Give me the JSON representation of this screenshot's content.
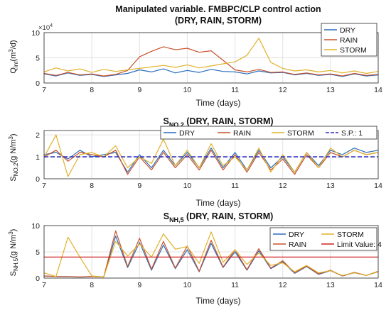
{
  "figure_title": "Manipulated variable. FMBPC/CLP control action",
  "chart_data": [
    {
      "type": "line",
      "title": "(DRY, RAIN, STORM)",
      "xlabel": "Time (days)",
      "ylabel": "Q_int(m^3/d)",
      "ylabel_main": "Q",
      "ylabel_sub": "int",
      "ylabel_rest": "(m",
      "ylabel_sup": "3",
      "ylabel_end": "/d)",
      "y_exponent_label": "×10",
      "y_exponent_power": "4",
      "xlim": [
        7,
        14
      ],
      "ylim": [
        0,
        10
      ],
      "x_ticks": [
        "7",
        "8",
        "9",
        "10",
        "11",
        "12",
        "13",
        "14"
      ],
      "y_ticks": [
        "0",
        "5",
        "10"
      ],
      "grid": true,
      "legend": "top-right",
      "series": [
        {
          "name": "DRY",
          "color": "#2a6ebb",
          "x": [
            7.0,
            7.25,
            7.5,
            7.75,
            8.0,
            8.25,
            8.5,
            8.75,
            9.0,
            9.25,
            9.5,
            9.75,
            10.0,
            10.25,
            10.5,
            10.75,
            11.0,
            11.25,
            11.5,
            11.75,
            12.0,
            12.25,
            12.5,
            12.75,
            13.0,
            13.25,
            13.5,
            13.75,
            14.0
          ],
          "y": [
            1.8,
            1.4,
            2.0,
            1.5,
            1.7,
            1.3,
            1.6,
            1.9,
            2.6,
            2.2,
            2.8,
            2.0,
            2.5,
            2.1,
            2.7,
            2.3,
            2.2,
            1.8,
            2.4,
            2.0,
            2.1,
            1.6,
            1.9,
            1.5,
            1.7,
            1.3,
            1.8,
            1.4,
            1.6
          ]
        },
        {
          "name": "RAIN",
          "color": "#c8502a",
          "x": [
            7.0,
            7.25,
            7.5,
            7.75,
            8.0,
            8.25,
            8.5,
            8.75,
            9.0,
            9.25,
            9.5,
            9.75,
            10.0,
            10.25,
            10.5,
            10.75,
            11.0,
            11.25,
            11.5,
            11.75,
            12.0,
            12.25,
            12.5,
            12.75,
            13.0,
            13.25,
            13.5,
            13.75,
            14.0
          ],
          "y": [
            1.9,
            1.5,
            2.1,
            1.6,
            1.8,
            1.4,
            1.7,
            2.5,
            5.2,
            6.3,
            7.2,
            6.6,
            6.9,
            6.1,
            6.4,
            4.5,
            2.6,
            2.2,
            2.7,
            2.1,
            2.2,
            1.7,
            2.0,
            1.6,
            1.8,
            1.4,
            1.9,
            1.5,
            1.7
          ]
        },
        {
          "name": "STORM",
          "color": "#e0b02a",
          "x": [
            7.0,
            7.25,
            7.5,
            7.75,
            8.0,
            8.25,
            8.5,
            8.75,
            9.0,
            9.25,
            9.5,
            9.75,
            10.0,
            10.25,
            10.5,
            10.75,
            11.0,
            11.25,
            11.5,
            11.75,
            12.0,
            12.25,
            12.5,
            12.75,
            13.0,
            13.25,
            13.5,
            13.75,
            14.0
          ],
          "y": [
            2.2,
            3.0,
            2.4,
            2.8,
            2.1,
            2.7,
            2.3,
            2.6,
            2.9,
            3.2,
            3.5,
            3.1,
            3.6,
            3.0,
            3.4,
            3.8,
            4.2,
            5.5,
            8.9,
            4.1,
            2.9,
            2.4,
            2.6,
            2.2,
            2.5,
            2.0,
            2.4,
            1.9,
            2.3
          ]
        }
      ]
    },
    {
      "type": "line",
      "title_main": "S",
      "title_sub": "NO,2",
      "title_rest": " (DRY, RAIN, STORM)",
      "xlabel": "Time (days)",
      "ylabel_main": "S",
      "ylabel_sub": "NO,2",
      "ylabel_rest": "(g N/m",
      "ylabel_sup": "3",
      "ylabel_end": ")",
      "xlim": [
        7,
        14
      ],
      "ylim": [
        0,
        2.2
      ],
      "x_ticks": [
        "7",
        "8",
        "9",
        "10",
        "11",
        "12",
        "13",
        "14"
      ],
      "y_ticks": [
        "0",
        "1",
        "2"
      ],
      "grid": true,
      "legend": "top",
      "series": [
        {
          "name": "DRY",
          "color": "#2a6ebb",
          "x": [
            7.0,
            7.25,
            7.5,
            7.75,
            8.0,
            8.25,
            8.5,
            8.75,
            9.0,
            9.25,
            9.5,
            9.75,
            10.0,
            10.25,
            10.5,
            10.75,
            11.0,
            11.25,
            11.5,
            11.75,
            12.0,
            12.25,
            12.5,
            12.75,
            13.0,
            13.25,
            13.5,
            13.75,
            14.0
          ],
          "y": [
            1.1,
            1.2,
            0.9,
            1.3,
            1.0,
            1.1,
            1.2,
            0.3,
            1.1,
            0.5,
            1.3,
            0.6,
            1.2,
            0.5,
            1.4,
            0.5,
            1.2,
            0.4,
            1.3,
            0.5,
            1.0,
            0.3,
            1.2,
            0.6,
            1.3,
            1.1,
            1.4,
            1.2,
            1.3
          ]
        },
        {
          "name": "RAIN",
          "color": "#c8502a",
          "x": [
            7.0,
            7.25,
            7.5,
            7.75,
            8.0,
            8.25,
            8.5,
            8.75,
            9.0,
            9.25,
            9.5,
            9.75,
            10.0,
            10.25,
            10.5,
            10.75,
            11.0,
            11.25,
            11.5,
            11.75,
            12.0,
            12.25,
            12.5,
            12.75,
            13.0,
            13.25,
            13.5,
            13.75,
            14.0
          ],
          "y": [
            1.0,
            1.3,
            0.8,
            1.2,
            1.1,
            1.0,
            1.3,
            0.2,
            1.0,
            0.4,
            1.2,
            0.5,
            1.1,
            0.4,
            1.3,
            0.4,
            1.1,
            0.3,
            1.2,
            0.4,
            0.9,
            0.2,
            1.1,
            0.5,
            1.2,
            1.0,
            1.3,
            1.1,
            1.2
          ]
        },
        {
          "name": "STORM",
          "color": "#e0b02a",
          "x": [
            7.0,
            7.25,
            7.5,
            7.75,
            8.0,
            8.25,
            8.5,
            8.75,
            9.0,
            9.25,
            9.5,
            9.75,
            10.0,
            10.25,
            10.5,
            10.75,
            11.0,
            11.25,
            11.5,
            11.75,
            12.0,
            12.25,
            12.5,
            12.75,
            13.0,
            13.25,
            13.5,
            13.75,
            14.0
          ],
          "y": [
            1.0,
            2.0,
            0.1,
            1.1,
            1.2,
            1.0,
            1.5,
            0.5,
            1.0,
            0.7,
            1.8,
            0.6,
            1.3,
            0.5,
            1.6,
            0.6,
            1.0,
            0.4,
            1.4,
            0.3,
            1.1,
            0.3,
            1.2,
            0.5,
            1.4,
            1.0,
            1.3,
            1.1,
            1.2
          ]
        },
        {
          "name": "S.P.: 1",
          "color": "#3030c0",
          "dashed": true,
          "x": [
            7,
            14
          ],
          "y": [
            1,
            1
          ]
        }
      ]
    },
    {
      "type": "line",
      "title_main": "S",
      "title_sub": "NH,5",
      "title_rest": " (DRY, RAIN, STORM)",
      "xlabel": "Time (days)",
      "ylabel_main": "S",
      "ylabel_sub": "NH,5",
      "ylabel_rest": "(g N/m",
      "ylabel_sup": "3",
      "ylabel_end": ")",
      "xlim": [
        7,
        14
      ],
      "ylim": [
        0,
        10
      ],
      "x_ticks": [
        "7",
        "8",
        "9",
        "10",
        "11",
        "12",
        "13",
        "14"
      ],
      "y_ticks": [
        "0",
        "5",
        "10"
      ],
      "grid": true,
      "legend": "top-right",
      "series": [
        {
          "name": "DRY",
          "color": "#2a6ebb",
          "x": [
            7.0,
            7.25,
            7.5,
            7.75,
            8.0,
            8.25,
            8.5,
            8.75,
            9.0,
            9.25,
            9.5,
            9.75,
            10.0,
            10.25,
            10.5,
            10.75,
            11.0,
            11.25,
            11.5,
            11.75,
            12.0,
            12.25,
            12.5,
            12.75,
            13.0,
            13.25,
            13.5,
            13.75,
            14.0
          ],
          "y": [
            0.4,
            0.3,
            0.3,
            0.2,
            0.3,
            0.2,
            8.0,
            2.0,
            6.8,
            1.5,
            6.3,
            1.8,
            5.4,
            1.2,
            6.6,
            2.0,
            5.0,
            1.5,
            5.2,
            1.8,
            3.1,
            0.9,
            2.2,
            0.7,
            1.4,
            0.4,
            1.0,
            0.5,
            1.2
          ]
        },
        {
          "name": "RAIN",
          "color": "#c8502a",
          "x": [
            7.0,
            7.25,
            7.5,
            7.75,
            8.0,
            8.25,
            8.5,
            8.75,
            9.0,
            9.25,
            9.5,
            9.75,
            10.0,
            10.25,
            10.5,
            10.75,
            11.0,
            11.25,
            11.5,
            11.75,
            12.0,
            12.25,
            12.5,
            12.75,
            13.0,
            13.25,
            13.5,
            13.75,
            14.0
          ],
          "y": [
            0.4,
            0.3,
            0.3,
            0.2,
            0.3,
            0.2,
            9.0,
            2.2,
            7.6,
            1.7,
            7.0,
            1.9,
            6.1,
            1.3,
            7.2,
            2.1,
            5.4,
            1.6,
            5.6,
            1.9,
            3.3,
            1.0,
            2.3,
            0.8,
            1.5,
            0.4,
            1.1,
            0.5,
            1.3
          ]
        },
        {
          "name": "STORM",
          "color": "#e0b02a",
          "x": [
            7.0,
            7.25,
            7.5,
            7.75,
            8.0,
            8.25,
            8.5,
            8.75,
            9.0,
            9.25,
            9.5,
            9.75,
            10.0,
            10.25,
            10.5,
            10.75,
            11.0,
            11.25,
            11.5,
            11.75,
            12.0,
            12.25,
            12.5,
            12.75,
            13.0,
            13.25,
            13.5,
            13.75,
            14.0
          ],
          "y": [
            1.0,
            0.3,
            7.8,
            4.0,
            0.4,
            0.2,
            7.0,
            4.2,
            6.5,
            4.0,
            8.4,
            5.5,
            6.0,
            2.8,
            8.8,
            3.0,
            5.4,
            2.6,
            4.8,
            2.4,
            2.9,
            1.2,
            2.4,
            1.0,
            1.4,
            0.5,
            1.0,
            0.5,
            1.2
          ]
        },
        {
          "name": "Limit Value: 4",
          "color": "#d02020",
          "x": [
            7,
            14
          ],
          "y": [
            4,
            4
          ]
        }
      ]
    }
  ]
}
